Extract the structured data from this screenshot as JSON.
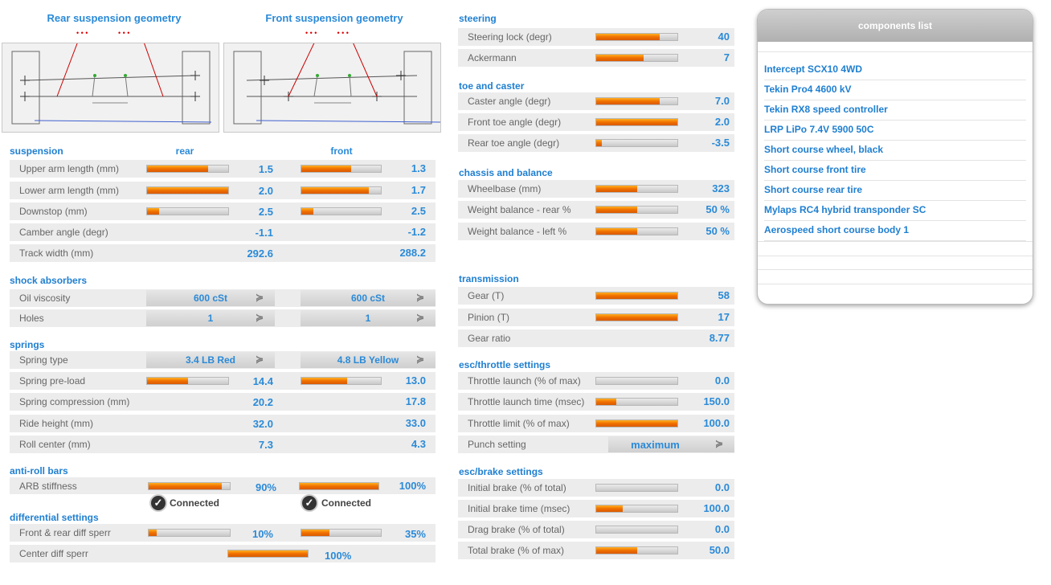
{
  "geometry": {
    "rear_title": "Rear suspension geometry",
    "front_title": "Front suspension geometry"
  },
  "suspension": {
    "title": "suspension",
    "rear_head": "rear",
    "front_head": "front",
    "rows": [
      {
        "label": "Upper arm length (mm)",
        "rear": "1.5",
        "front": "1.3",
        "rear_fill": 0.75,
        "front_fill": 0.63
      },
      {
        "label": "Lower arm length (mm)",
        "rear": "2.0",
        "front": "1.7",
        "rear_fill": 1.0,
        "front_fill": 0.85
      },
      {
        "label": "Downstop (mm)",
        "rear": "2.5",
        "front": "2.5",
        "rear_fill": 0.15,
        "front_fill": 0.15
      },
      {
        "label": "Camber angle (degr)",
        "rear": "-1.1",
        "front": "-1.2"
      },
      {
        "label": "Track width (mm)",
        "rear": "292.6",
        "front": "288.2"
      }
    ]
  },
  "shocks": {
    "title": "shock absorbers",
    "rows": [
      {
        "label": "Oil viscosity",
        "rear": "600 cSt",
        "front": "600 cSt"
      },
      {
        "label": "Holes",
        "rear": "1",
        "front": "1"
      }
    ]
  },
  "springs": {
    "title": "springs",
    "rows": [
      {
        "label": "Spring type",
        "rear": "3.4 LB Red",
        "front": "4.8 LB Yellow"
      },
      {
        "label": "Spring pre-load",
        "rear": "14.4",
        "front": "13.0",
        "rear_fill": 0.5,
        "front_fill": 0.58
      },
      {
        "label": "Spring compression (mm)",
        "rear": "20.2",
        "front": "17.8"
      },
      {
        "label": "Ride height (mm)",
        "rear": "32.0",
        "front": "33.0"
      },
      {
        "label": "Roll center (mm)",
        "rear": "7.3",
        "front": "4.3"
      }
    ]
  },
  "arb": {
    "title": "anti-roll bars",
    "label": "ARB stiffness",
    "rear": "90%",
    "front": "100%",
    "rear_fill": 0.9,
    "front_fill": 1.0,
    "rear_status": "Connected",
    "front_status": "Connected"
  },
  "diff": {
    "title": "differential settings",
    "rows": [
      {
        "label": "Front & rear diff sperr",
        "rear": "10%",
        "front": "35%",
        "rear_fill": 0.1,
        "front_fill": 0.35
      },
      {
        "label": "Center diff sperr",
        "center": "100%",
        "center_fill": 1.0
      }
    ]
  },
  "steering": {
    "title": "steering",
    "rows": [
      {
        "label": "Steering lock (degr)",
        "value": "40",
        "fill": 0.78
      },
      {
        "label": "Ackermann",
        "value": "7",
        "fill": 0.58
      }
    ]
  },
  "toe": {
    "title": "toe and caster",
    "rows": [
      {
        "label": "Caster angle (degr)",
        "value": "7.0",
        "fill": 0.78
      },
      {
        "label": "Front toe angle (degr)",
        "value": "2.0",
        "fill": 1.0
      },
      {
        "label": "Rear toe angle (degr)",
        "value": "-3.5",
        "fill": 0.07
      }
    ]
  },
  "chassis": {
    "title": "chassis and balance",
    "rows": [
      {
        "label": "Wheelbase (mm)",
        "value": "323",
        "fill": 0.5
      },
      {
        "label": "Weight balance - rear %",
        "value": "50 %",
        "fill": 0.5
      },
      {
        "label": "Weight balance - left %",
        "value": "50 %",
        "fill": 0.5
      }
    ]
  },
  "transmission": {
    "title": "transmission",
    "rows": [
      {
        "label": "Gear (T)",
        "value": "58",
        "fill": 1.0
      },
      {
        "label": "Pinion (T)",
        "value": "17",
        "fill": 1.0
      },
      {
        "label": "Gear ratio",
        "value": "8.77"
      }
    ]
  },
  "esc_throttle": {
    "title": "esc/throttle settings",
    "rows": [
      {
        "label": "Throttle launch (% of max)",
        "value": "0.0",
        "fill": 0.0
      },
      {
        "label": "Throttle launch time (msec)",
        "value": "150.0",
        "fill": 0.25
      },
      {
        "label": "Throttle limit (% of max)",
        "value": "100.0",
        "fill": 1.0
      }
    ],
    "punch_label": "Punch setting",
    "punch_value": "maximum"
  },
  "esc_brake": {
    "title": "esc/brake settings",
    "rows": [
      {
        "label": "Initial brake (% of total)",
        "value": "0.0",
        "fill": 0.0
      },
      {
        "label": "Initial brake time (msec)",
        "value": "100.0",
        "fill": 0.33
      },
      {
        "label": "Drag brake (% of total)",
        "value": "0.0",
        "fill": 0.0
      },
      {
        "label": "Total brake (% of max)",
        "value": "50.0",
        "fill": 0.5
      }
    ]
  },
  "components": {
    "title": "components list",
    "items": [
      "Intercept SCX10 4WD",
      "Tekin Pro4 4600 kV",
      "Tekin RX8 speed controller",
      "LRP LiPo 7.4V 5900 50C",
      "Short course wheel, black",
      "Short course front tire",
      "Short course rear tire",
      "Mylaps RC4 hybrid transponder SC",
      "Aerospeed short course body 1"
    ]
  }
}
